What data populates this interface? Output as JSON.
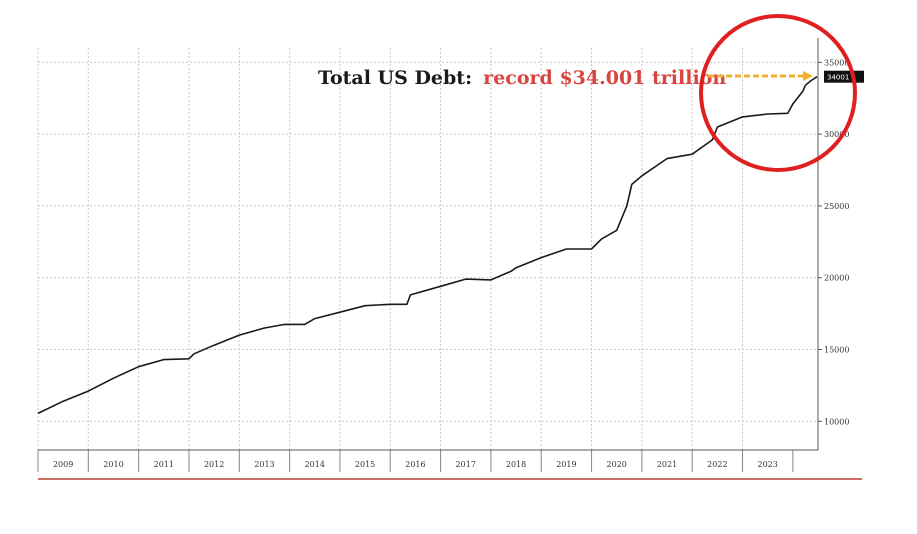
{
  "chart_data": {
    "type": "line",
    "title": "",
    "xlabel": "",
    "ylabel": "",
    "x_ticks": [
      "2009",
      "2010",
      "2011",
      "2012",
      "2013",
      "2014",
      "2015",
      "2016",
      "2017",
      "2018",
      "2019",
      "2020",
      "2021",
      "2022",
      "2023"
    ],
    "y_ticks": [
      "10000",
      "15000",
      "20000",
      "25000",
      "30000",
      "35000"
    ],
    "ylim": [
      8000,
      36000
    ],
    "xlim": [
      2008.5,
      2024.0
    ],
    "grid": true,
    "series": [
      {
        "x": [
          2008.5,
          2009.0,
          2009.5,
          2010.0,
          2010.5,
          2011.0,
          2011.5,
          2011.6,
          2012.0,
          2012.5,
          2013.0,
          2013.4,
          2013.8,
          2014.0,
          2014.5,
          2015.0,
          2015.5,
          2015.83,
          2015.9,
          2016.5,
          2017.0,
          2017.5,
          2017.9,
          2018.0,
          2018.5,
          2019.0,
          2019.5,
          2019.7,
          2020.0,
          2020.2,
          2020.3,
          2020.5,
          2021.0,
          2021.5,
          2021.9,
          2022.0,
          2022.5,
          2023.0,
          2023.4,
          2023.5,
          2023.7,
          2023.75,
          2023.85,
          2023.98
        ],
        "y": [
          10550,
          11400,
          12100,
          13000,
          13800,
          14300,
          14350,
          14700,
          15300,
          16000,
          16500,
          16750,
          16750,
          17150,
          17600,
          18050,
          18150,
          18150,
          18800,
          19400,
          19900,
          19850,
          20450,
          20700,
          21400,
          22000,
          22000,
          22700,
          23300,
          25000,
          26500,
          27100,
          28300,
          28600,
          29600,
          30500,
          31200,
          31400,
          31450,
          32100,
          33000,
          33400,
          33700,
          34001
        ]
      }
    ],
    "last_value_label": "34001",
    "annotation": {
      "prefix": "Total US Debt:",
      "highlight": "record $34.001 trillion"
    },
    "colors": {
      "line": "#1a1a1a",
      "grid": "#c8c8c8",
      "annotation_text": "#1a1a1a",
      "annotation_highlight": "#d6453f",
      "arrow": "#f0b030",
      "circle": "#e02020",
      "baseline": "#b84030",
      "last_value_bg": "#111111"
    }
  }
}
